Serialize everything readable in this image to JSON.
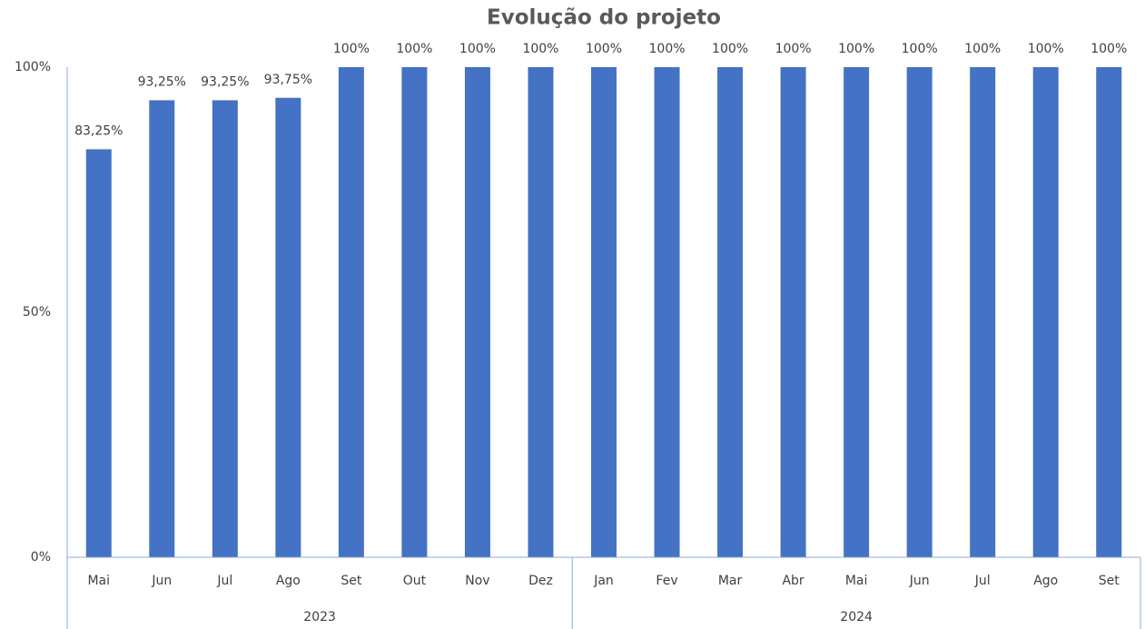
{
  "chart_data": {
    "type": "bar",
    "title": "Evolução do projeto",
    "categories": [
      "Mai",
      "Jun",
      "Jul",
      "Ago",
      "Set",
      "Out",
      "Nov",
      "Dez",
      "Jan",
      "Fev",
      "Mar",
      "Abr",
      "Mai",
      "Jun",
      "Jul",
      "Ago",
      "Set"
    ],
    "category_groups": [
      {
        "label": "2023",
        "size": 8
      },
      {
        "label": "2024",
        "size": 9
      }
    ],
    "values": [
      83.25,
      93.25,
      93.25,
      93.75,
      100,
      100,
      100,
      100,
      100,
      100,
      100,
      100,
      100,
      100,
      100,
      100,
      100
    ],
    "value_labels": [
      "83,25%",
      "93,25%",
      "93,25%",
      "93,75%",
      "100%",
      "100%",
      "100%",
      "100%",
      "100%",
      "100%",
      "100%",
      "100%",
      "100%",
      "100%",
      "100%",
      "100%",
      "100%"
    ],
    "color": "#4472c4",
    "ylim": [
      0,
      100
    ],
    "yticks": [
      {
        "value": 0,
        "label": "0%"
      },
      {
        "value": 50,
        "label": "50%"
      },
      {
        "value": 100,
        "label": "100%"
      }
    ],
    "grid": false
  }
}
